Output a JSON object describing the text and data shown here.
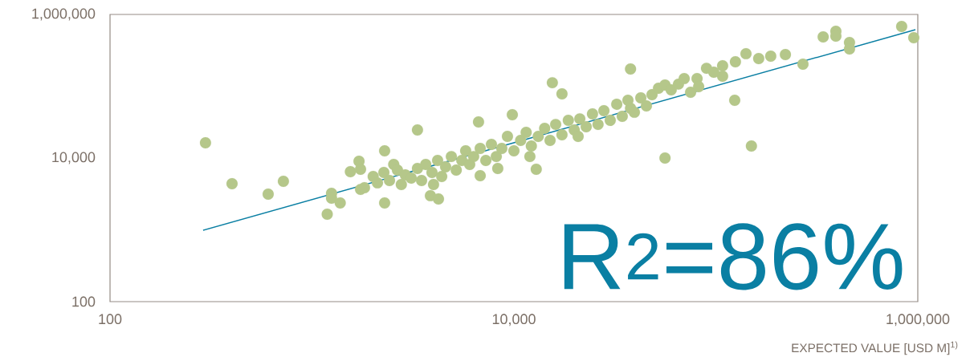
{
  "chart_data": {
    "type": "scatter",
    "xlabel": "EXPECTED VALUE [USD M]$^{1)}$",
    "annotations": [
      "R$^{2}$=86%"
    ],
    "log": "xy",
    "marker": "circle",
    "xlim": [
      100,
      1000000
    ],
    "ylim": [
      100,
      1000000
    ],
    "xticks": [
      {
        "value": 100,
        "label": "100"
      },
      {
        "value": 10000,
        "label": "10,000"
      },
      {
        "value": 1000000,
        "label": "1,000,000"
      }
    ],
    "yticks": [
      {
        "value": 100,
        "label": "100"
      },
      {
        "value": 10000,
        "label": "10,000"
      },
      {
        "value": 1000000,
        "label": "1,000,000"
      }
    ],
    "series": [
      {
        "color": "#b5c78a",
        "x": [
          297,
          402,
          607,
          722,
          1190,
          1250,
          1250,
          1380,
          1550,
          1710,
          1740,
          1740,
          1820,
          2290,
          2290,
          2540,
          3330,
          3860,
          4230,
          6810,
          6680,
          9820,
          12900,
          15500,
          17300,
          37800,
          56000,
          37800,
          150000,
          124000,
          108000,
          125000,
          270000,
          340000,
          393000,
          393000,
          459000,
          459000,
          832000,
          955000,
          141000,
          163000,
          187000,
          221000,
          108000,
          89900,
          80700,
          97700,
          2010,
          2110,
          2270,
          2420,
          2650,
          2770,
          2900,
          3100,
          3330,
          3490,
          3660,
          3930,
          4190,
          4390,
          4590,
          4900,
          5180,
          5520,
          5770,
          6040,
          6320,
          6810,
          7260,
          7740,
          8180,
          8710,
          9290,
          10000,
          10800,
          11500,
          12200,
          13200,
          14200,
          15100,
          16100,
          17300,
          18600,
          19900,
          21200,
          22800,
          24500,
          26100,
          27900,
          30000,
          32300,
          34400,
          36700,
          39500,
          42500,
          45300,
          48300,
          52000,
          56000,
          60100,
          65300,
          69700,
          75000,
          82200,
          4000,
          8320,
          12000,
          20800
        ],
        "values": [
          16300,
          4390,
          3140,
          4740,
          1650,
          3220,
          2760,
          2370,
          6460,
          9010,
          6980,
          3660,
          3870,
          2370,
          12600,
          8150,
          24600,
          2990,
          2690,
          5680,
          31800,
          40100,
          6980,
          112000,
          78300,
          174000,
          10000,
          49300,
          14700,
          63700,
          138000,
          219000,
          203000,
          486000,
          582000,
          499000,
          406000,
          331000,
          679000,
          474000,
          284000,
          243000,
          262000,
          276000,
          193000,
          178000,
          128000,
          157000,
          5530,
          4510,
          6300,
          4860,
          6790,
          4280,
          5820,
          5260,
          7160,
          4860,
          8150,
          6300,
          9250,
          5530,
          7530,
          10500,
          6790,
          9250,
          12600,
          8150,
          10500,
          13600,
          9250,
          15500,
          10500,
          13600,
          20000,
          12600,
          17600,
          22800,
          14700,
          20000,
          25900,
          17600,
          29400,
          21100,
          33500,
          24600,
          35200,
          27300,
          41200,
          29400,
          45600,
          33500,
          56100,
          38100,
          63700,
          43400,
          68900,
          53200,
          76400,
          93700,
          104000,
          89100,
          107000,
          128000,
          82400,
          98600,
          4280,
          7160,
          10500,
          20000
        ]
      },
      {
        "type": "line",
        "color": "#0a7fa3",
        "marker": "none",
        "x": [
          289,
          973000
        ],
        "values": [
          986,
          614000
        ]
      }
    ]
  }
}
